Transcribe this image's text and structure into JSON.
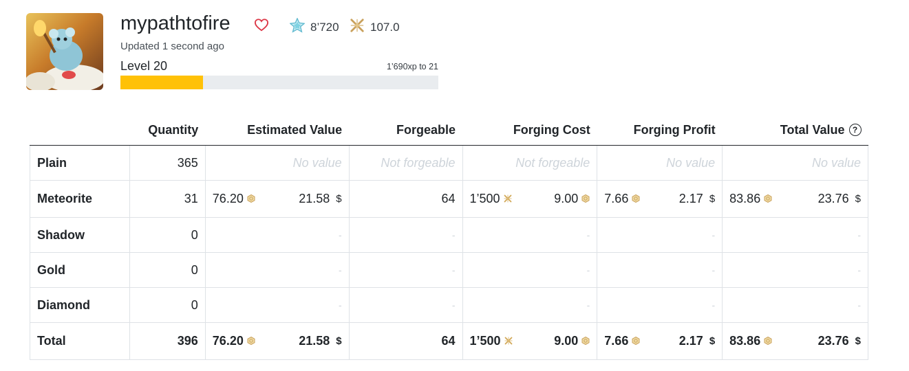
{
  "profile": {
    "username": "mypathtofire",
    "updated": "Updated 1 second ago",
    "shards": "8’720",
    "tokens": "107.0",
    "level_label": "Level 20",
    "xp_to_next": "1’690xp to 21",
    "xp_progress": 0.26,
    "icons": {
      "favorite": "heart-outline-icon",
      "shards": "blue-shard-icon",
      "tokens": "gold-forge-token-icon"
    },
    "colors": {
      "xp_fill": "#ffc107",
      "heart": "#dc3545"
    }
  },
  "table": {
    "headers": {
      "name": "",
      "quantity": "Quantity",
      "estimated_value": "Estimated Value",
      "forgeable": "Forgeable",
      "forging_cost": "Forging Cost",
      "forging_profit": "Forging Profit",
      "total_value": "Total Value",
      "help": "?"
    },
    "placeholders": {
      "no_value": "No value",
      "not_forgeable": "Not forgeable",
      "dash": "-"
    },
    "currency": "$",
    "rows": {
      "plain": {
        "name": "Plain",
        "quantity": "365"
      },
      "meteorite": {
        "name": "Meteorite",
        "quantity": "31",
        "est_coin": "76.20",
        "est_usd": "21.58",
        "forgeable": "64",
        "cost_tokens": "1’500",
        "cost_coin": "9.00",
        "profit_coin": "7.66",
        "profit_usd": "2.17",
        "total_coin": "83.86",
        "total_usd": "23.76"
      },
      "shadow": {
        "name": "Shadow",
        "quantity": "0"
      },
      "gold": {
        "name": "Gold",
        "quantity": "0"
      },
      "diamond": {
        "name": "Diamond",
        "quantity": "0"
      },
      "total": {
        "name": "Total",
        "quantity": "396",
        "est_coin": "76.20",
        "est_usd": "21.58",
        "forgeable": "64",
        "cost_tokens": "1’500",
        "cost_coin": "9.00",
        "profit_coin": "7.66",
        "profit_usd": "2.17",
        "total_coin": "83.86",
        "total_usd": "23.76"
      }
    }
  }
}
